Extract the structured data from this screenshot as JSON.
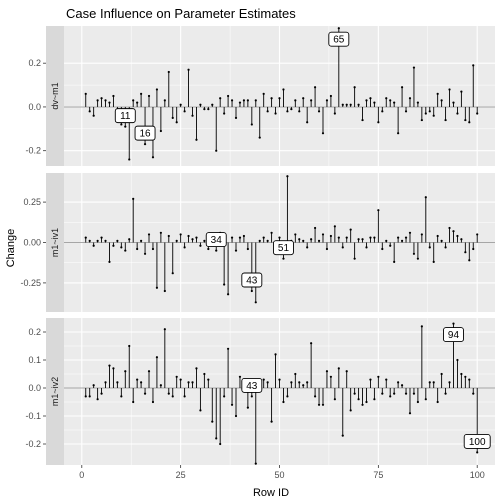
{
  "chart_data": {
    "type": "lollipop",
    "title": "Case Influence on Parameter Estimates",
    "xlabel": "Row ID",
    "ylabel": "Change",
    "xlim": [
      0,
      100
    ],
    "xticks": [
      "0",
      "25",
      "50",
      "75",
      "100"
    ],
    "colors": {
      "panel_bg": "#ebebeb",
      "grid": "#ffffff",
      "strip_bg": "#d9d9d9",
      "stem": "#000000",
      "zero_line": "#a6a6a6"
    },
    "panels": [
      {
        "name": "dv~m1",
        "ylim": [
          -0.27,
          0.37
        ],
        "yticks": [
          "-0.2",
          "0.0",
          "0.2"
        ],
        "values": [
          0.06,
          -0.02,
          -0.04,
          0.03,
          0.04,
          0.03,
          0.02,
          0.05,
          -0.06,
          -0.08,
          -0.09,
          -0.24,
          0.03,
          0.02,
          0.06,
          -0.17,
          0.05,
          -0.23,
          0.08,
          -0.11,
          0.03,
          0.16,
          -0.05,
          -0.07,
          0.01,
          -0.02,
          0.17,
          -0.04,
          -0.15,
          0.01,
          -0.01,
          -0.01,
          0.01,
          -0.2,
          0.04,
          -0.03,
          0.05,
          0.03,
          -0.05,
          0.02,
          0.03,
          0.03,
          -0.08,
          0.03,
          -0.14,
          0.06,
          -0.02,
          0.04,
          -0.03,
          0.04,
          0.08,
          -0.02,
          -0.01,
          0.03,
          -0.02,
          0.04,
          -0.07,
          0.03,
          0.09,
          -0.02,
          -0.12,
          0.03,
          0.05,
          -0.03,
          0.36,
          0.01,
          0.01,
          0.01,
          0.09,
          0.01,
          -0.06,
          0.03,
          0.04,
          0.02,
          -0.07,
          -0.02,
          0.04,
          0.03,
          0.02,
          -0.12,
          0.09,
          -0.02,
          0.04,
          0.18,
          0.02,
          -0.06,
          -0.03,
          -0.02,
          -0.04,
          0.06,
          0.03,
          -0.06,
          0.08,
          0.02,
          -0.03,
          0.07,
          -0.06,
          -0.07,
          0.19,
          -0.03
        ],
        "labels": [
          {
            "id": 11,
            "text": "11"
          },
          {
            "id": 16,
            "text": "16"
          },
          {
            "id": 65,
            "text": "65"
          }
        ]
      },
      {
        "name": "m1~iv1",
        "ylim": [
          -0.43,
          0.43
        ],
        "yticks": [
          "-0.25",
          "0.00",
          "0.25"
        ],
        "values": [
          0.03,
          0.01,
          -0.02,
          0.01,
          0.03,
          0.01,
          -0.12,
          -0.02,
          0.01,
          -0.03,
          -0.05,
          0.02,
          0.27,
          -0.04,
          0.01,
          -0.07,
          0.05,
          -0.04,
          -0.28,
          0.06,
          -0.3,
          0.04,
          -0.19,
          0.01,
          0.05,
          -0.03,
          0.04,
          0.02,
          0.03,
          -0.02,
          0.01,
          -0.04,
          0.05,
          -0.05,
          0.06,
          -0.26,
          -0.32,
          0.03,
          -0.05,
          0.03,
          0.04,
          -0.04,
          -0.3,
          -0.37,
          0.01,
          0.03,
          0.01,
          0.06,
          -0.03,
          0.03,
          -0.1,
          0.41,
          0.01,
          0.05,
          0.02,
          0.01,
          -0.03,
          0.02,
          0.09,
          0.01,
          0.05,
          -0.04,
          0.04,
          0.1,
          0.03,
          -0.03,
          0.03,
          0.08,
          -0.1,
          0.02,
          0.02,
          -0.03,
          0.03,
          0.03,
          0.2,
          -0.04,
          0.01,
          -0.02,
          -0.12,
          0.03,
          0.01,
          0.03,
          0.06,
          -0.07,
          -0.1,
          0.05,
          0.28,
          -0.03,
          -0.12,
          0.04,
          0.01,
          -0.03,
          0.09,
          0.07,
          0.04,
          0.02,
          -0.06,
          -0.11,
          -0.04,
          0.05
        ],
        "labels": [
          {
            "id": 34,
            "text": "34"
          },
          {
            "id": 43,
            "text": "43"
          },
          {
            "id": 51,
            "text": "51"
          }
        ]
      },
      {
        "name": "m1~iv2",
        "ylim": [
          -0.275,
          0.25
        ],
        "yticks": [
          "-0.2",
          "-0.1",
          "0.0",
          "0.1",
          "0.2"
        ],
        "values": [
          -0.03,
          -0.03,
          0.01,
          -0.04,
          -0.02,
          0.02,
          0.08,
          0.07,
          0.02,
          -0.03,
          0.06,
          0.15,
          -0.05,
          0.03,
          0.02,
          -0.02,
          0.06,
          -0.05,
          0.11,
          0.01,
          0.21,
          -0.02,
          -0.03,
          0.04,
          0.03,
          -0.03,
          0.02,
          0.02,
          0.07,
          -0.08,
          0.05,
          0.03,
          -0.12,
          -0.18,
          -0.2,
          -0.03,
          0.14,
          -0.06,
          -0.1,
          0.04,
          0.03,
          -0.07,
          -0.03,
          -0.27,
          0.02,
          0.03,
          0.02,
          -0.12,
          0.12,
          0.03,
          -0.05,
          -0.03,
          0.02,
          0.05,
          0.02,
          0.01,
          0.02,
          0.16,
          -0.03,
          -0.06,
          -0.06,
          0.06,
          0.04,
          -0.04,
          0.07,
          -0.17,
          0.06,
          -0.08,
          -0.02,
          -0.04,
          -0.06,
          -0.05,
          0.03,
          -0.04,
          0.04,
          -0.02,
          0.03,
          -0.03,
          -0.02,
          0.02,
          0.01,
          -0.02,
          -0.09,
          -0.02,
          -0.05,
          0.22,
          -0.04,
          0.02,
          0.02,
          -0.05,
          0.05,
          -0.02,
          0.02,
          0.23,
          0.1,
          0.05,
          0.04,
          0.03,
          -0.02,
          -0.23
        ],
        "labels": [
          {
            "id": 43,
            "text": "43"
          },
          {
            "id": 94,
            "text": "94"
          },
          {
            "id": 100,
            "text": "100"
          }
        ]
      }
    ]
  }
}
